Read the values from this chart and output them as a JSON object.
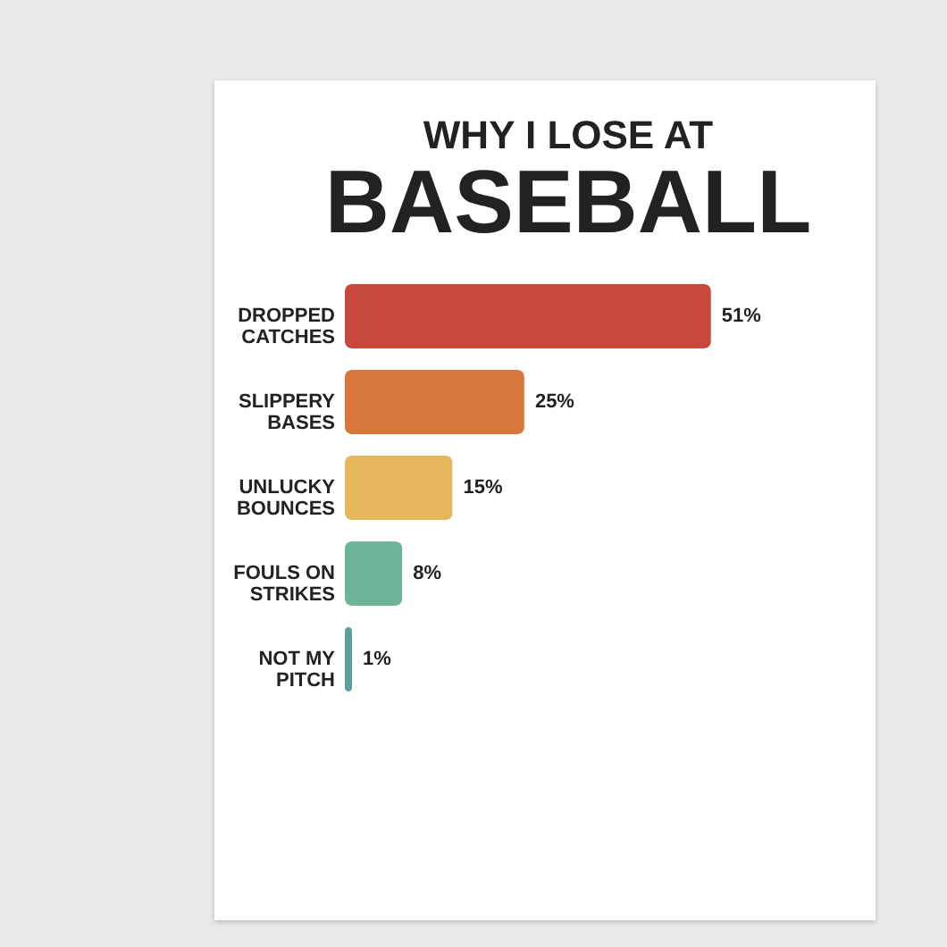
{
  "chart_data": {
    "type": "bar",
    "orientation": "horizontal",
    "title": "WHY I LOSE AT",
    "subtitle": "BASEBALL",
    "categories": [
      "DROPPED CATCHES",
      "SLIPPERY BASES",
      "UNLUCKY BOUNCES",
      "FOULS ON STRIKES",
      "NOT MY PITCH"
    ],
    "values": [
      51,
      25,
      15,
      8,
      1
    ],
    "colors": [
      "#c8493b",
      "#d7773b",
      "#e6b65c",
      "#6db596",
      "#5e9f9c"
    ],
    "value_labels": [
      "51%",
      "25%",
      "15%",
      "8%",
      "1%"
    ]
  }
}
